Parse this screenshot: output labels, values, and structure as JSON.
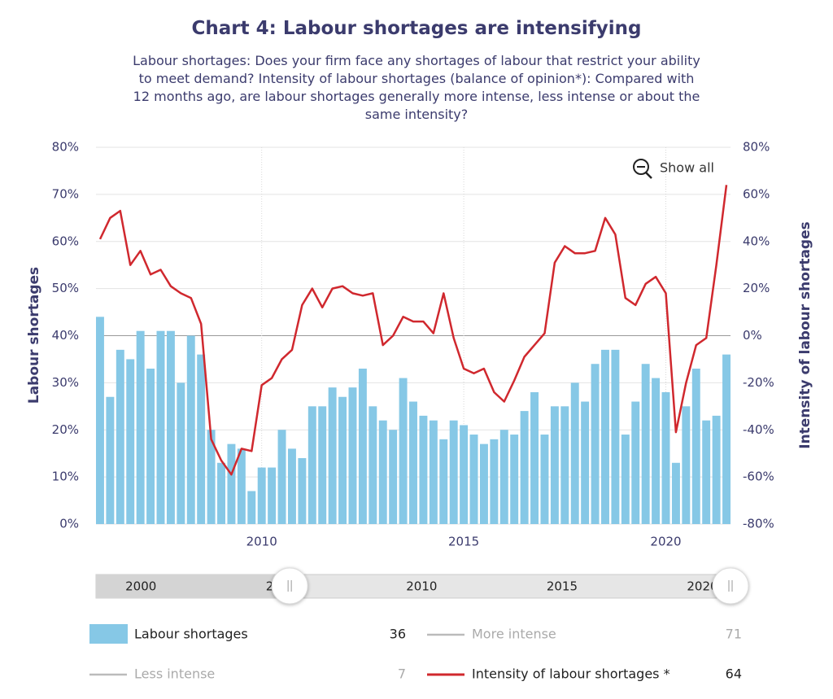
{
  "chart_data": {
    "type": "combo",
    "title": "Chart 4: Labour shortages are intensifying",
    "subtitle": "Labour shortages: Does your firm face any shortages of labour that restrict your ability to meet demand? Intensity of labour shortages (balance of opinion*): Compared with 12 months ago, are labour shortages generally more intense, less intense or about the same intensity?",
    "ylabel": "Labour shortages",
    "y2label": "Intensity of labour shortages",
    "show_all": "Show all",
    "xlim": [
      2005.9,
      2021.6
    ],
    "xticks": [
      2010,
      2015,
      2020
    ],
    "ylim": [
      0,
      80
    ],
    "yticks": [
      {
        "value": 0,
        "label": "0%"
      },
      {
        "value": 10,
        "label": "10%"
      },
      {
        "value": 20,
        "label": "20%"
      },
      {
        "value": 30,
        "label": "30%"
      },
      {
        "value": 40,
        "label": "40%"
      },
      {
        "value": 50,
        "label": "50%"
      },
      {
        "value": 60,
        "label": "60%"
      },
      {
        "value": 70,
        "label": "70%"
      },
      {
        "value": 80,
        "label": "80%"
      }
    ],
    "y2lim": [
      -80,
      80
    ],
    "y2ticks": [
      {
        "value": -80,
        "label": "-80%"
      },
      {
        "value": -60,
        "label": "-60%"
      },
      {
        "value": -40,
        "label": "-40%"
      },
      {
        "value": -20,
        "label": "-20%"
      },
      {
        "value": 0,
        "label": "0%"
      },
      {
        "value": 20,
        "label": "20%"
      },
      {
        "value": 40,
        "label": "40%"
      },
      {
        "value": 60,
        "label": "60%"
      },
      {
        "value": 80,
        "label": "80%"
      }
    ],
    "grid": true,
    "x": [
      2006,
      2006.25,
      2006.5,
      2006.75,
      2007,
      2007.25,
      2007.5,
      2007.75,
      2008,
      2008.25,
      2008.5,
      2008.75,
      2009,
      2009.25,
      2009.5,
      2009.75,
      2010,
      2010.25,
      2010.5,
      2010.75,
      2011,
      2011.25,
      2011.5,
      2011.75,
      2012,
      2012.25,
      2012.5,
      2012.75,
      2013,
      2013.25,
      2013.5,
      2013.75,
      2014,
      2014.25,
      2014.5,
      2014.75,
      2015,
      2015.25,
      2015.5,
      2015.75,
      2016,
      2016.25,
      2016.5,
      2016.75,
      2017,
      2017.25,
      2017.5,
      2017.75,
      2018,
      2018.25,
      2018.5,
      2018.75,
      2019,
      2019.25,
      2019.5,
      2019.75,
      2020,
      2020.25,
      2020.5,
      2020.75,
      2021,
      2021.25,
      2021.5
    ],
    "series": [
      {
        "name": "Labour shortages",
        "type": "bar",
        "color": "#86c8e6",
        "legend_value": 36,
        "values": [
          44,
          27,
          37,
          35,
          41,
          33,
          41,
          41,
          30,
          40,
          36,
          20,
          13,
          17,
          16,
          7,
          12,
          12,
          20,
          16,
          14,
          25,
          25,
          29,
          27,
          29,
          33,
          25,
          22,
          20,
          31,
          26,
          23,
          22,
          18,
          22,
          21,
          19,
          17,
          18,
          20,
          19,
          24,
          28,
          19,
          25,
          25,
          30,
          26,
          34,
          37,
          37,
          19,
          26,
          34,
          31,
          28,
          13,
          25,
          33,
          22,
          23,
          36
        ]
      },
      {
        "name": "Intensity of labour shortages *",
        "type": "line",
        "axis": "y2",
        "color": "#d0282e",
        "legend_value": 64,
        "values": [
          41,
          50,
          53,
          30,
          36,
          26,
          28,
          21,
          18,
          16,
          5,
          -44,
          -53,
          -59,
          -48,
          -49,
          -21,
          -18,
          -10,
          -6,
          13,
          20,
          12,
          20,
          21,
          18,
          17,
          18,
          -4,
          0,
          8,
          6,
          6,
          1,
          18,
          -1,
          -14,
          -16,
          -14,
          -24,
          -28,
          -19,
          -9,
          -4,
          1,
          31,
          38,
          35,
          35,
          36,
          50,
          43,
          16,
          13,
          22,
          25,
          18,
          -41,
          -20,
          -4,
          -1,
          30,
          64
        ]
      }
    ],
    "legend_extra": [
      {
        "name": "More intense",
        "value": 71,
        "color": "#bbbbbb"
      },
      {
        "name": "Less intense",
        "value": 7,
        "color": "#bbbbbb"
      }
    ],
    "navigator": {
      "xlim": [
        1998.4,
        2021
      ],
      "xticks": [
        2000,
        2005,
        2010,
        2015,
        2020
      ],
      "range": [
        2005.3,
        2021
      ]
    }
  }
}
